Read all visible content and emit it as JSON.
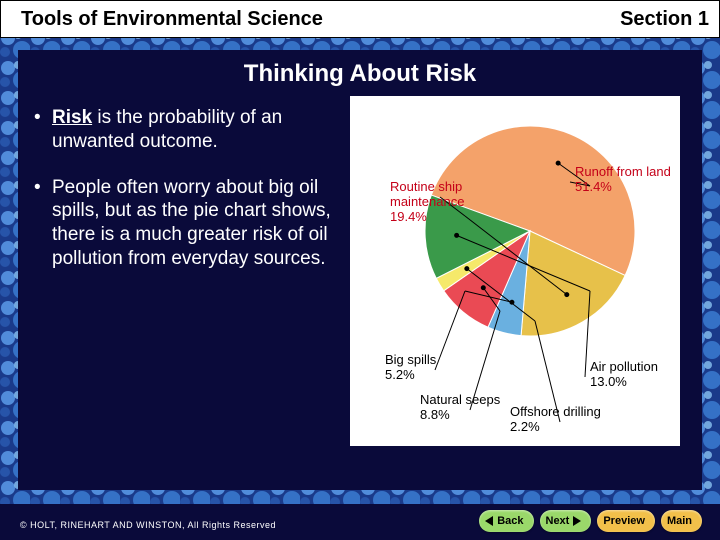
{
  "header": {
    "left": "Tools of Environmental Science",
    "right": "Section 1"
  },
  "title": "Thinking About Risk",
  "bullets": [
    {
      "prefix_bold": "Risk",
      "rest": " is the probability of an unwanted outcome."
    },
    {
      "prefix_bold": "",
      "rest": "People often worry about big oil spills, but as the pie chart shows, there is a much greater risk of oil pollution from everyday sources."
    }
  ],
  "pie_chart": {
    "type": "pie",
    "background_color": "#ffffff",
    "slices": [
      {
        "label": "Runoff from land",
        "value": 51.4,
        "color": "#f4a26a"
      },
      {
        "label": "Routine ship maintenance",
        "value": 19.4,
        "color": "#e7c14a"
      },
      {
        "label": "Big spills",
        "value": 5.2,
        "color": "#6ab0e0"
      },
      {
        "label": "Natural seeps",
        "value": 8.8,
        "color": "#ea4a54"
      },
      {
        "label": "Offshore drilling",
        "value": 2.2,
        "color": "#f5e96a"
      },
      {
        "label": "Air pollution",
        "value": 13.0,
        "color": "#3a9a4a"
      }
    ],
    "label_fontsize": 13,
    "label_color": "#000000",
    "runoff_label_color": "#c40018",
    "routine_label_color": "#c40018"
  },
  "nav": {
    "back": {
      "label": "Back",
      "bg": "#9ad86a"
    },
    "next": {
      "label": "Next",
      "bg": "#9ad86a"
    },
    "preview": {
      "label": "Preview",
      "bg": "#f2c04a"
    },
    "main": {
      "label": "Main",
      "bg": "#f2c04a"
    }
  },
  "copyright": "© HOLT, RINEHART AND WINSTON, All Rights Reserved",
  "border": {
    "base_color": "#1a3a8a",
    "bubble_color": "#5a9ae8"
  }
}
